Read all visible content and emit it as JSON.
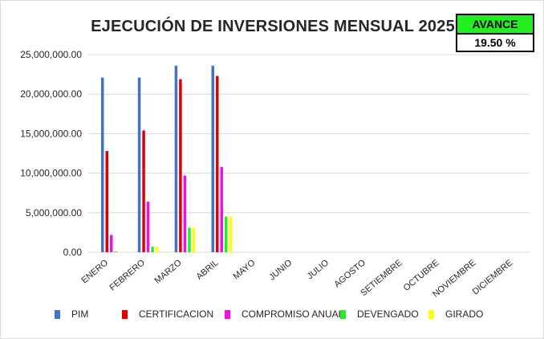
{
  "chart_data": {
    "type": "bar",
    "title": "EJECUCIÓN DE INVERSIONES MENSUAL 2025",
    "categories": [
      "ENERO",
      "FEBRERO",
      "MARZO",
      "ABRIL",
      "MAYO",
      "JUNIO",
      "JULIO",
      "AGOSTO",
      "SETIEMBRE",
      "OCTUBRE",
      "NOVIEMBRE",
      "DICIEMBRE"
    ],
    "series": [
      {
        "name": "PIM",
        "color": "#4472c4",
        "values": [
          22100000,
          22100000,
          23600000,
          23600000,
          0,
          0,
          0,
          0,
          0,
          0,
          0,
          0
        ]
      },
      {
        "name": "CERTIFICACION",
        "color": "#e00000",
        "values": [
          12800000,
          15400000,
          21900000,
          22300000,
          0,
          0,
          0,
          0,
          0,
          0,
          0,
          0
        ]
      },
      {
        "name": "COMPROMISO ANUAL",
        "color": "#ee11ee",
        "values": [
          2200000,
          6400000,
          9700000,
          10800000,
          0,
          0,
          0,
          0,
          0,
          0,
          0,
          0
        ]
      },
      {
        "name": "DEVENGADO",
        "color": "#22ee22",
        "values": [
          100000,
          700000,
          3100000,
          4500000,
          0,
          0,
          0,
          0,
          0,
          0,
          0,
          0
        ]
      },
      {
        "name": "GIRADO",
        "color": "#ffff00",
        "values": [
          50000,
          700000,
          3100000,
          4500000,
          0,
          0,
          0,
          0,
          0,
          0,
          0,
          0
        ]
      }
    ],
    "yticks": [
      "0.00",
      "5,000,000.00",
      "10,000,000.00",
      "15,000,000.00",
      "20,000,000.00",
      "25,000,000.00"
    ],
    "ylim": [
      0,
      25000000
    ],
    "grid": true,
    "legend": "bottom"
  },
  "avance": {
    "label": "AVANCE",
    "value": "19.50 %"
  }
}
